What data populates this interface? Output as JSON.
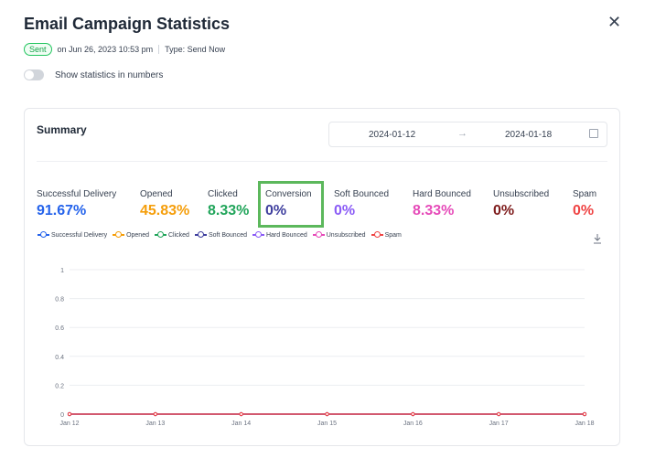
{
  "header": {
    "title": "Email Campaign Statistics",
    "status": "Sent",
    "sent_on": "on Jun 26, 2023 10:53 pm",
    "type": "Type: Send Now"
  },
  "toggle": {
    "label": "Show statistics in numbers",
    "on": false
  },
  "summary": {
    "title": "Summary",
    "date_from": "2024-01-12",
    "arrow": "→",
    "date_to": "2024-01-18"
  },
  "stats": [
    {
      "label": "Successful Delivery",
      "value": "91.67%",
      "color": "#2563eb"
    },
    {
      "label": "Opened",
      "value": "45.83%",
      "color": "#f59e0b"
    },
    {
      "label": "Clicked",
      "value": "8.33%",
      "color": "#22a55b"
    },
    {
      "label": "Conversion",
      "value": "0%",
      "color": "#3f3f9e"
    },
    {
      "label": "Soft Bounced",
      "value": "0%",
      "color": "#8b5cf6"
    },
    {
      "label": "Hard Bounced",
      "value": "8.33%",
      "color": "#e64bb9"
    },
    {
      "label": "Unsubscribed",
      "value": "0%",
      "color": "#7f1d1d"
    },
    {
      "label": "Spam",
      "value": "0%",
      "color": "#ef4444"
    }
  ],
  "legend": [
    {
      "name": "Successful Delivery",
      "color": "#2563eb"
    },
    {
      "name": "Opened",
      "color": "#f59e0b"
    },
    {
      "name": "Clicked",
      "color": "#22a55b"
    },
    {
      "name": "Soft Bounced",
      "color": "#3f3f9e"
    },
    {
      "name": "Hard Bounced",
      "color": "#8b5cf6"
    },
    {
      "name": "Unsubscribed",
      "color": "#e64bb9"
    },
    {
      "name": "Spam",
      "color": "#ef4444"
    }
  ],
  "chart_data": {
    "type": "line",
    "categories": [
      "Jan 12",
      "Jan 13",
      "Jan 14",
      "Jan 15",
      "Jan 16",
      "Jan 17",
      "Jan 18"
    ],
    "ylim": [
      0,
      1
    ],
    "yticks": [
      "0",
      "0.2",
      "0.4",
      "0.6",
      "0.8",
      "1"
    ],
    "grid": true,
    "legend_position": "top",
    "series": [
      {
        "name": "Successful Delivery",
        "color": "#2563eb",
        "values": [
          0,
          0,
          0,
          0,
          0,
          0,
          0
        ]
      },
      {
        "name": "Opened",
        "color": "#f59e0b",
        "values": [
          0,
          0,
          0,
          0,
          0,
          0,
          0
        ]
      },
      {
        "name": "Clicked",
        "color": "#22a55b",
        "values": [
          0,
          0,
          0,
          0,
          0,
          0,
          0
        ]
      },
      {
        "name": "Soft Bounced",
        "color": "#3f3f9e",
        "values": [
          0,
          0,
          0,
          0,
          0,
          0,
          0
        ]
      },
      {
        "name": "Hard Bounced",
        "color": "#8b5cf6",
        "values": [
          0,
          0,
          0,
          0,
          0,
          0,
          0
        ]
      },
      {
        "name": "Unsubscribed",
        "color": "#e64bb9",
        "values": [
          0,
          0,
          0,
          0,
          0,
          0,
          0
        ]
      },
      {
        "name": "Spam",
        "color": "#ef4444",
        "values": [
          0,
          0,
          0,
          0,
          0,
          0,
          0
        ]
      }
    ]
  }
}
